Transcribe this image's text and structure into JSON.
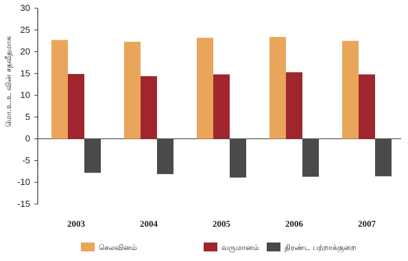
{
  "chart_data": {
    "type": "bar",
    "title": "",
    "xlabel": "",
    "ylabel": "மொ.உ.உ வின் சதவீதமாக",
    "ylim": [
      -15,
      30
    ],
    "yticks": [
      30,
      25,
      20,
      15,
      10,
      5,
      0,
      -5,
      -10,
      -15
    ],
    "categories": [
      "2003",
      "2004",
      "2005",
      "2006",
      "2007"
    ],
    "grid": false,
    "legend_position": "bottom",
    "series": [
      {
        "name": "செலவினம்",
        "color": "#E9A55A",
        "values": [
          22.7,
          22.3,
          23.2,
          23.4,
          22.5
        ]
      },
      {
        "name": "வருமானம்",
        "color": "#A0262E",
        "values": [
          14.9,
          14.4,
          14.8,
          15.3,
          14.8
        ]
      },
      {
        "name": "திரண்ட பற்றாக்குறை",
        "color": "#4A4A4A",
        "values": [
          -7.8,
          -8.1,
          -8.9,
          -8.7,
          -8.6
        ]
      }
    ]
  }
}
